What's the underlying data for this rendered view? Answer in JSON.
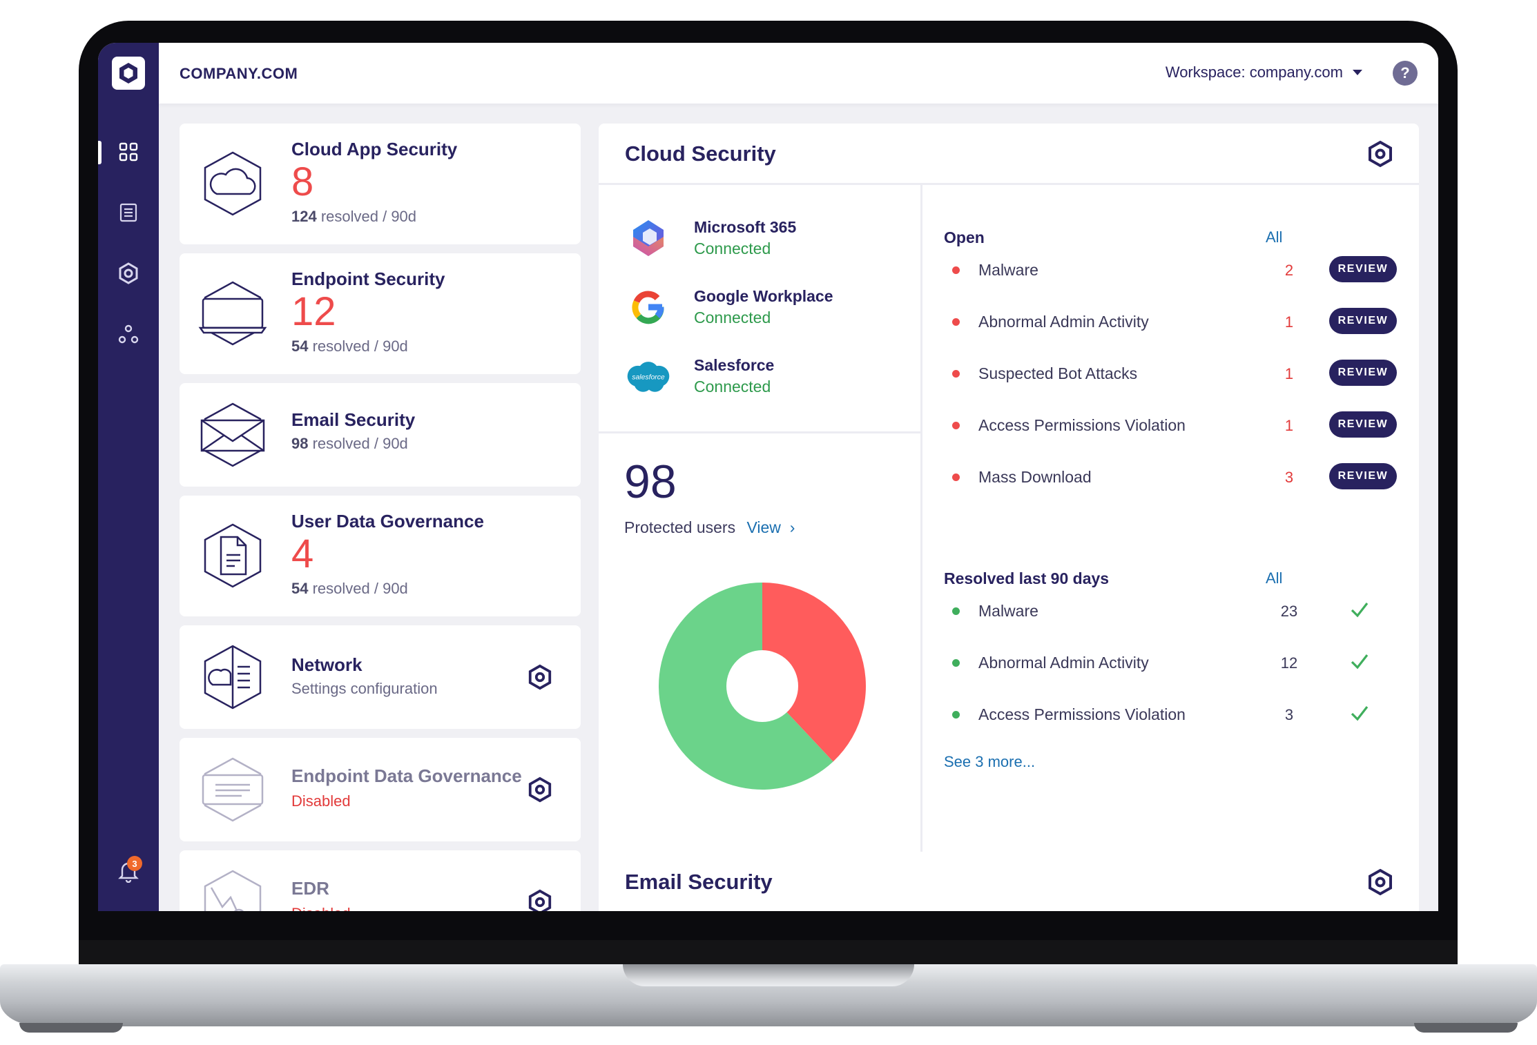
{
  "app": {
    "brand": "COMPANY.COM",
    "workspace": "Workspace: company.com",
    "help_label": "?"
  },
  "notifications": {
    "count": "3"
  },
  "modules": [
    {
      "title": "Cloud App Security",
      "count": "8",
      "resolved": "124",
      "resolved_suffix": " resolved / 90d"
    },
    {
      "title": "Endpoint Security",
      "count": "12",
      "resolved": "54",
      "resolved_suffix": " resolved / 90d"
    },
    {
      "title": "Email Security",
      "resolved": "98",
      "resolved_suffix": " resolved / 90d"
    },
    {
      "title": "User Data Governance",
      "count": "4",
      "resolved": "54",
      "resolved_suffix": " resolved / 90d"
    },
    {
      "title": "Network",
      "subtitle": "Settings configuration"
    },
    {
      "title": "Endpoint Data Governance",
      "status": "Disabled"
    },
    {
      "title": "EDR",
      "status": "Disabled"
    }
  ],
  "cloud_security": {
    "title": "Cloud Security",
    "connections": [
      {
        "name": "Microsoft 365",
        "status": "Connected"
      },
      {
        "name": "Google Workplace",
        "status": "Connected"
      },
      {
        "name": "Salesforce",
        "status": "Connected",
        "logo_text": "salesforce"
      }
    ],
    "protected_users": {
      "value": "98",
      "label": "Protected users",
      "link": "View",
      "chevron": "›"
    },
    "donut": {
      "resolved_fraction": 0.62,
      "open_fraction": 0.38,
      "colors": {
        "resolved": "#6bd38a",
        "open": "#ff5c5c"
      }
    },
    "open": {
      "heading": "Open",
      "all_link": "All",
      "items": [
        {
          "label": "Malware",
          "count": "2",
          "action": "REVIEW"
        },
        {
          "label": "Abnormal Admin Activity",
          "count": "1",
          "action": "REVIEW"
        },
        {
          "label": "Suspected Bot Attacks",
          "count": "1",
          "action": "REVIEW"
        },
        {
          "label": "Access Permissions Violation",
          "count": "1",
          "action": "REVIEW"
        },
        {
          "label": "Mass Download",
          "count": "3",
          "action": "REVIEW"
        }
      ]
    },
    "resolved": {
      "heading": "Resolved last 90 days",
      "all_link": "All",
      "items": [
        {
          "label": "Malware",
          "count": "23"
        },
        {
          "label": "Abnormal Admin Activity",
          "count": "12"
        },
        {
          "label": "Access Permissions Violation",
          "count": "3"
        }
      ],
      "see_more": "See 3 more..."
    }
  },
  "email_security": {
    "title": "Email Security"
  },
  "colors": {
    "navy": "#28225f",
    "alert_red": "#ee4b4b",
    "ok_green": "#2e9a4c",
    "link_blue": "#1b6fb0"
  }
}
